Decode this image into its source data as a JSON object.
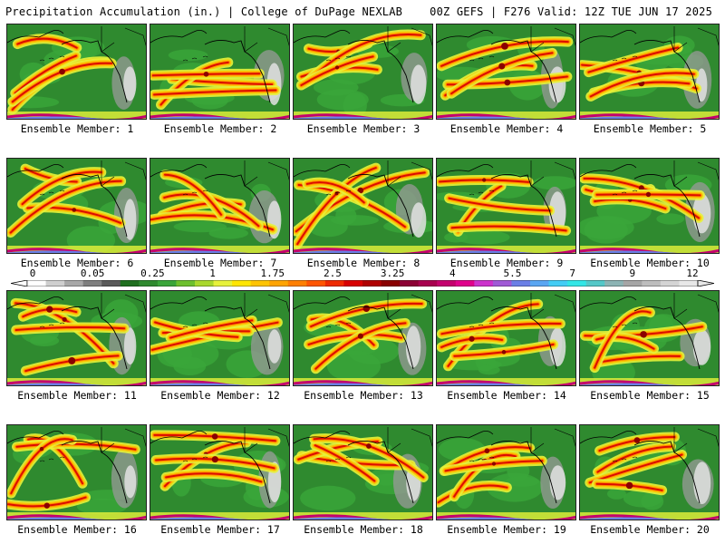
{
  "header": {
    "title": "Precipitation Accumulation (in.) | College of DuPage NEXLAB",
    "run_info": "00Z GEFS | F276 Valid: 12Z TUE JUN 17 2025"
  },
  "colorbar": {
    "tick_labels": [
      "0",
      "0.05",
      "0.25",
      "1",
      "1.75",
      "2.5",
      "3.25",
      "4",
      "5.5",
      "7",
      "9",
      "12"
    ],
    "colors": [
      "#ffffff",
      "#cfcfcf",
      "#a8a8a8",
      "#7f7f7f",
      "#5a5a5a",
      "#1f6f1f",
      "#2f8a2f",
      "#3aa63a",
      "#6dc02d",
      "#a9d82c",
      "#e7f23a",
      "#ffe600",
      "#ffc400",
      "#ffa400",
      "#ff7f00",
      "#ff5500",
      "#ee2a00",
      "#d80000",
      "#b00000",
      "#8a0000",
      "#8c0034",
      "#a8004f",
      "#c4006e",
      "#e0008c",
      "#cc33cc",
      "#a05ad6",
      "#6b7fe6",
      "#5aa6f2",
      "#43cdf5",
      "#33e6e6",
      "#54c8c8",
      "#8cb4b4",
      "#a6a6a6",
      "#bdbdbd",
      "#d4d4d4",
      "#e8e8e8"
    ]
  },
  "panels": [
    {
      "label": "Ensemble Member: 1"
    },
    {
      "label": "Ensemble Member: 2"
    },
    {
      "label": "Ensemble Member: 3"
    },
    {
      "label": "Ensemble Member: 4"
    },
    {
      "label": "Ensemble Member: 5"
    },
    {
      "label": "Ensemble Member: 6"
    },
    {
      "label": "Ensemble Member: 7"
    },
    {
      "label": "Ensemble Member: 8"
    },
    {
      "label": "Ensemble Member: 9"
    },
    {
      "label": "Ensemble Member: 10"
    },
    {
      "label": "Ensemble Member: 11"
    },
    {
      "label": "Ensemble Member: 12"
    },
    {
      "label": "Ensemble Member: 13"
    },
    {
      "label": "Ensemble Member: 14"
    },
    {
      "label": "Ensemble Member: 15"
    },
    {
      "label": "Ensemble Member: 16"
    },
    {
      "label": "Ensemble Member: 17"
    },
    {
      "label": "Ensemble Member: 18"
    },
    {
      "label": "Ensemble Member: 19"
    },
    {
      "label": "Ensemble Member: 20"
    }
  ]
}
